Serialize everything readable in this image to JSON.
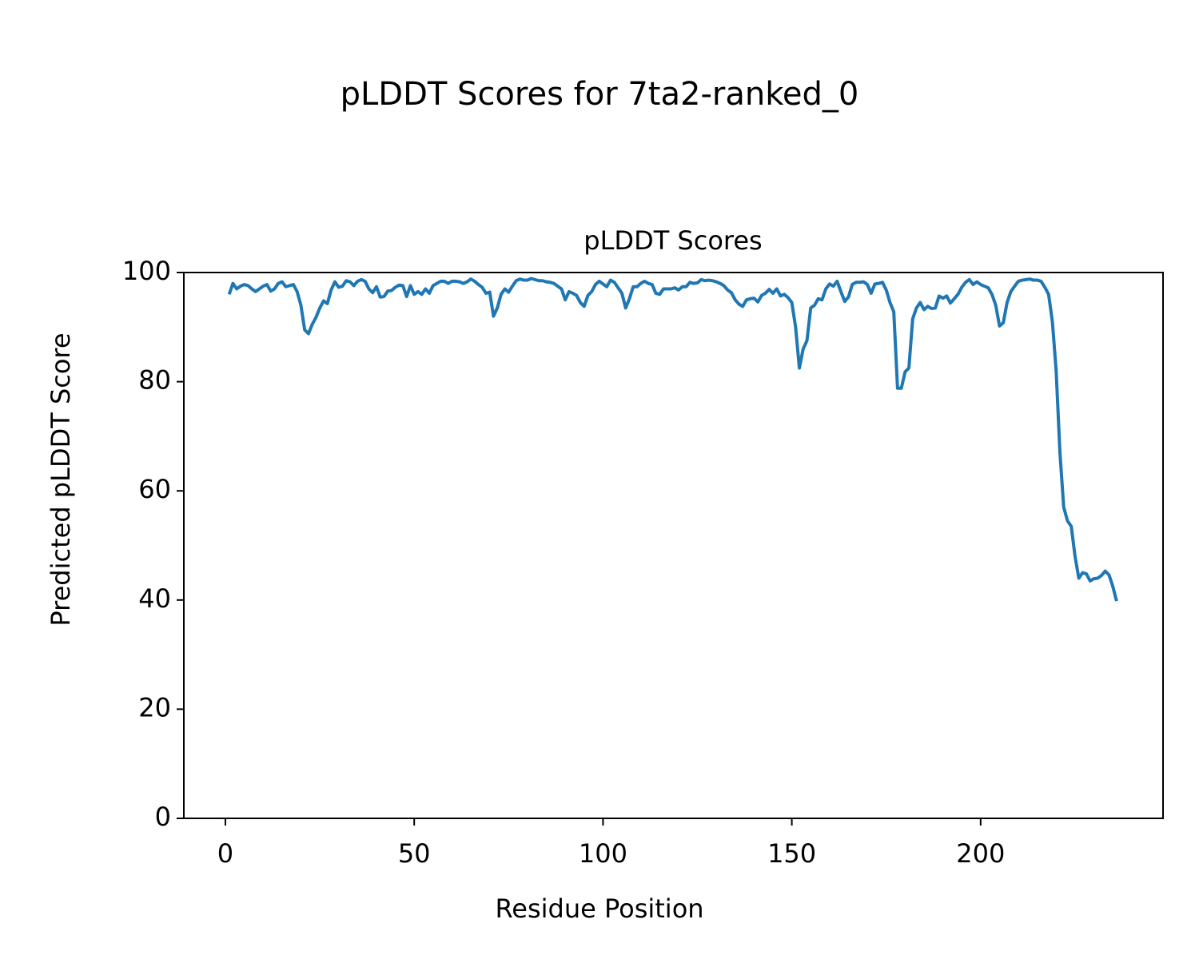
{
  "chart_data": {
    "type": "line",
    "title": "pLDDT Scores for 7ta2-ranked_0",
    "subtitle": "pLDDT Scores",
    "x_label": "Residue Position",
    "y_label": "Predicted pLDDT Score",
    "color": "#1f77b4",
    "x": [
      1,
      2,
      3,
      4,
      5,
      6,
      7,
      8,
      9,
      10,
      11,
      12,
      13,
      14,
      15,
      16,
      17,
      18,
      19,
      20,
      21,
      22,
      23,
      24,
      25,
      26,
      27,
      28,
      29,
      30,
      31,
      32,
      33,
      34,
      35,
      36,
      37,
      38,
      39,
      40,
      41,
      42,
      43,
      44,
      45,
      46,
      47,
      48,
      49,
      50,
      51,
      52,
      53,
      54,
      55,
      56,
      57,
      58,
      59,
      60,
      61,
      62,
      63,
      64,
      65,
      66,
      67,
      68,
      69,
      70,
      71,
      72,
      73,
      74,
      75,
      76,
      77,
      78,
      79,
      80,
      81,
      82,
      83,
      84,
      85,
      86,
      87,
      88,
      89,
      90,
      91,
      92,
      93,
      94,
      95,
      96,
      97,
      98,
      99,
      100,
      101,
      102,
      103,
      104,
      105,
      106,
      107,
      108,
      109,
      110,
      111,
      112,
      113,
      114,
      115,
      116,
      117,
      118,
      119,
      120,
      121,
      122,
      123,
      124,
      125,
      126,
      127,
      128,
      129,
      130,
      131,
      132,
      133,
      134,
      135,
      136,
      137,
      138,
      139,
      140,
      141,
      142,
      143,
      144,
      145,
      146,
      147,
      148,
      149,
      150,
      151,
      152,
      153,
      154,
      155,
      156,
      157,
      158,
      159,
      160,
      161,
      162,
      163,
      164,
      165,
      166,
      167,
      168,
      169,
      170,
      171,
      172,
      173,
      174,
      175,
      176,
      177,
      178,
      179,
      180,
      181,
      182,
      183,
      184,
      185,
      186,
      187,
      188,
      189,
      190,
      191,
      192,
      193,
      194,
      195,
      196,
      197,
      198,
      199,
      200,
      201,
      202,
      203,
      204,
      205,
      206,
      207,
      208,
      209,
      210,
      211,
      212,
      213,
      214,
      215,
      216,
      217,
      218,
      219,
      220,
      221,
      222,
      223,
      224,
      225,
      226,
      227,
      228,
      229,
      230,
      231,
      232,
      233,
      234,
      235,
      236
    ],
    "values": [
      96,
      98,
      97,
      97.5,
      97.8,
      97.6,
      97,
      96.5,
      97,
      97.5,
      97.8,
      96.6,
      97,
      98,
      98.3,
      97.4,
      97.6,
      97.8,
      96.5,
      94,
      89.5,
      88.8,
      90.5,
      91.8,
      93.5,
      94.8,
      94.3,
      96.8,
      98.3,
      97.3,
      97.5,
      98.5,
      98.3,
      97.6,
      98.4,
      98.7,
      98.4,
      97,
      96.3,
      97.4,
      95.5,
      95.6,
      96.6,
      96.7,
      97.3,
      97.7,
      97.6,
      95.6,
      97.6,
      96,
      96.5,
      96,
      97,
      96.2,
      97.6,
      98,
      98.4,
      98.4,
      98,
      98.4,
      98.4,
      98.3,
      98,
      98.3,
      98.8,
      98.4,
      97.8,
      97.3,
      96.2,
      96.4,
      92,
      93.5,
      96,
      97,
      96.4,
      97.5,
      98.5,
      98.8,
      98.6,
      98.6,
      98.9,
      98.7,
      98.5,
      98.5,
      98.3,
      98.2,
      98,
      97.5,
      97,
      95,
      96.5,
      96.2,
      95.8,
      94.5,
      93.8,
      95.8,
      96.5,
      97.8,
      98.4,
      97.9,
      97.4,
      98.6,
      98.2,
      97.2,
      96.2,
      93.5,
      95.2,
      97.4,
      97.4,
      98,
      98.4,
      98,
      97.8,
      96.2,
      96,
      97,
      97,
      97,
      97.2,
      96.8,
      97.4,
      97.4,
      98.2,
      98,
      98.1,
      98.7,
      98.5,
      98.6,
      98.5,
      98.3,
      98,
      97.6,
      96.8,
      96.3,
      95,
      94.2,
      93.8,
      95,
      95.2,
      95.3,
      94.6,
      95.8,
      96.2,
      96.9,
      96.2,
      97,
      95.7,
      96,
      95.4,
      94.5,
      90,
      82.5,
      86,
      87.5,
      93.5,
      94,
      95.2,
      95,
      97,
      97.9,
      97.5,
      98.4,
      96.5,
      94.7,
      95.5,
      97.8,
      98.2,
      98.2,
      98.3,
      97.8,
      96.2,
      97.9,
      98,
      98.2,
      96.8,
      94.5,
      92.8,
      78.8,
      78.8,
      81.8,
      82.5,
      91.5,
      93.5,
      94.5,
      93.2,
      93.8,
      93.4,
      93.5,
      95.7,
      95.3,
      95.7,
      94.4,
      95.2,
      96,
      97.3,
      98.2,
      98.7,
      97.8,
      98.3,
      97.8,
      97.5,
      97.2,
      96,
      94,
      90.2,
      90.8,
      94.5,
      96.5,
      97.5,
      98.4,
      98.6,
      98.7,
      98.8,
      98.6,
      98.6,
      98.4,
      97.3,
      96,
      91,
      82,
      67,
      57,
      54.5,
      53.5,
      48,
      44,
      45,
      44.8,
      43.5,
      43.9,
      44,
      44.5,
      45.3,
      44.6,
      42.5,
      39.8
    ],
    "xlim": [
      -11,
      248.3
    ],
    "ylim": [
      0,
      100
    ],
    "xticks": [
      0,
      50,
      100,
      150,
      200
    ],
    "yticks": [
      0,
      20,
      40,
      60,
      80,
      100
    ]
  }
}
